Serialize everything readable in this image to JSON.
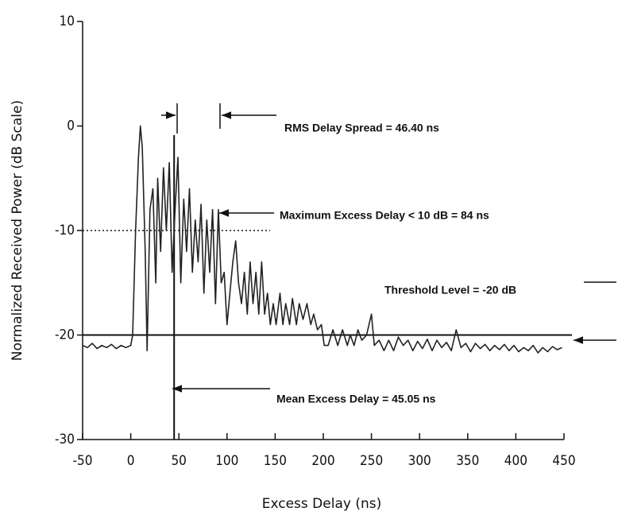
{
  "chart_data": {
    "type": "line",
    "x_label": "Excess Delay (ns)",
    "y_label": "Normalized Received Power (dB Scale)",
    "annotations": [
      "RMS Delay Spread = 46.40 ns",
      "Maximum Excess Delay < 10 dB = 84 ns",
      "Threshold Level = -20 dB",
      "Mean Excess Delay = 45.05 ns"
    ],
    "threshold": -20,
    "max_excess_level": -10,
    "mean_excess_delay": 45.05,
    "xlim": [
      -50,
      450
    ],
    "ylim": [
      -30,
      10
    ],
    "xticks": [
      -50,
      0,
      50,
      100,
      150,
      200,
      250,
      300,
      350,
      400,
      450
    ],
    "yticks": [
      10,
      0,
      -10,
      -20,
      -30
    ],
    "color": "#222222",
    "x": [
      -50,
      -45,
      -40,
      -35,
      -30,
      -25,
      -20,
      -15,
      -10,
      -5,
      0,
      2,
      5,
      8,
      10,
      12,
      15,
      17,
      20,
      23,
      26,
      28,
      31,
      34,
      37,
      40,
      43,
      46,
      49,
      52,
      55,
      58,
      61,
      64,
      67,
      70,
      73,
      76,
      79,
      82,
      85,
      88,
      91,
      94,
      97,
      100,
      103,
      106,
      109,
      112,
      115,
      118,
      121,
      124,
      127,
      130,
      133,
      136,
      139,
      142,
      145,
      148,
      151,
      155,
      158,
      161,
      165,
      168,
      172,
      175,
      179,
      183,
      187,
      190,
      194,
      198,
      201,
      205,
      210,
      215,
      220,
      225,
      228,
      232,
      236,
      240,
      245,
      250,
      253,
      258,
      263,
      268,
      273,
      278,
      283,
      288,
      293,
      298,
      303,
      308,
      313,
      318,
      323,
      328,
      333,
      338,
      343,
      348,
      353,
      358,
      363,
      368,
      373,
      378,
      383,
      388,
      393,
      398,
      403,
      408,
      413,
      418,
      423,
      428,
      433,
      438,
      443,
      448
    ],
    "values": [
      -21,
      -21.2,
      -20.8,
      -21.3,
      -21,
      -21.2,
      -20.9,
      -21.3,
      -21,
      -21.2,
      -21,
      -20,
      -10,
      -3,
      0,
      -2,
      -12,
      -21.5,
      -8,
      -6,
      -15,
      -5,
      -12,
      -4,
      -10,
      -3.5,
      -14,
      -8,
      -3,
      -15,
      -7,
      -12,
      -6,
      -14,
      -9,
      -13,
      -7.5,
      -16,
      -9,
      -14,
      -8,
      -17,
      -8,
      -15,
      -14,
      -19,
      -16,
      -13,
      -11,
      -15,
      -17,
      -14,
      -18,
      -13,
      -17,
      -14,
      -18,
      -13,
      -18,
      -16,
      -19,
      -17,
      -19,
      -16,
      -19,
      -17,
      -19,
      -16.5,
      -19,
      -17,
      -18.5,
      -17,
      -19,
      -18,
      -19.5,
      -19,
      -21,
      -21,
      -19.5,
      -21,
      -19.5,
      -21,
      -20,
      -21,
      -19.5,
      -20.5,
      -20,
      -18,
      -21,
      -20.5,
      -21.5,
      -20.5,
      -21.5,
      -20.2,
      -21,
      -20.5,
      -21.5,
      -20.6,
      -21.3,
      -20.4,
      -21.5,
      -20.5,
      -21.2,
      -20.7,
      -21.5,
      -19.5,
      -21.2,
      -20.8,
      -21.6,
      -20.8,
      -21.3,
      -20.9,
      -21.5,
      -21,
      -21.4,
      -20.9,
      -21.5,
      -21,
      -21.6,
      -21.2,
      -21.5,
      -21,
      -21.7,
      -21.2,
      -21.6,
      -21.1,
      -21.4,
      -21.2
    ]
  }
}
